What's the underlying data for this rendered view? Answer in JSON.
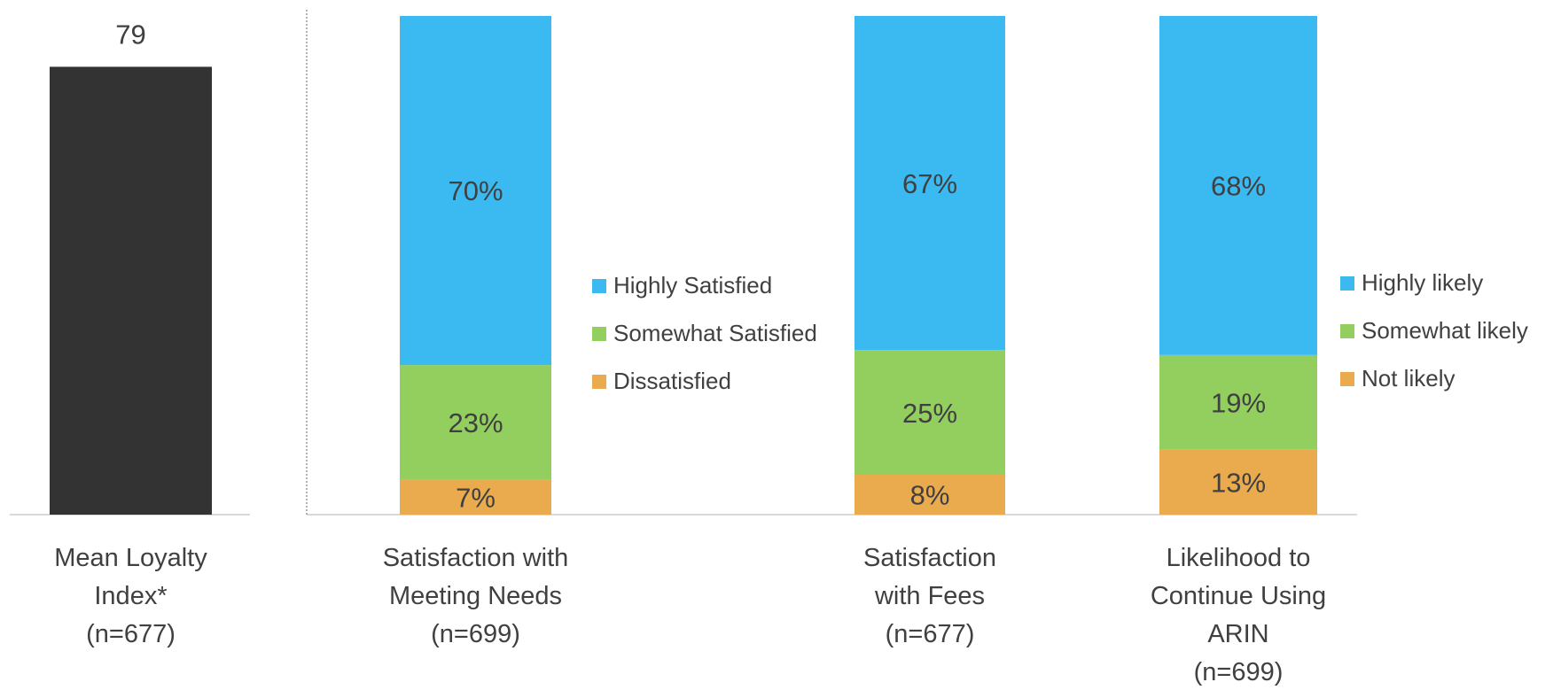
{
  "chart_data": [
    {
      "type": "bar",
      "categories": [
        "Mean Loyalty\nIndex*\n(n=677)"
      ],
      "values": [
        79
      ],
      "color": "#333333"
    },
    {
      "type": "stacked_bar",
      "categories": [
        "Satisfaction with\nMeeting Needs\n(n=699)",
        "Satisfaction\nwith Fees\n(n=677)"
      ],
      "series": [
        {
          "name": "Highly Satisfied",
          "color": "#3bbaf2",
          "values": [
            70,
            67
          ],
          "value_labels": [
            "70%",
            "67%"
          ]
        },
        {
          "name": "Somewhat Satisfied",
          "color": "#92cf5f",
          "values": [
            23,
            25
          ],
          "value_labels": [
            "23%",
            "25%"
          ]
        },
        {
          "name": "Dissatisfied",
          "color": "#eaab4f",
          "values": [
            7,
            8
          ],
          "value_labels": [
            "7%",
            "8%"
          ]
        }
      ]
    },
    {
      "type": "stacked_bar",
      "categories": [
        "Likelihood to\nContinue Using\nARIN\n(n=699)"
      ],
      "series": [
        {
          "name": "Highly likely",
          "color": "#3bbaf2",
          "values": [
            68
          ],
          "value_labels": [
            "68%"
          ]
        },
        {
          "name": "Somewhat likely",
          "color": "#92cf5f",
          "values": [
            19
          ],
          "value_labels": [
            "19%"
          ]
        },
        {
          "name": "Not likely",
          "color": "#eaab4f",
          "values": [
            13
          ],
          "value_labels": [
            "13%"
          ]
        }
      ]
    }
  ]
}
